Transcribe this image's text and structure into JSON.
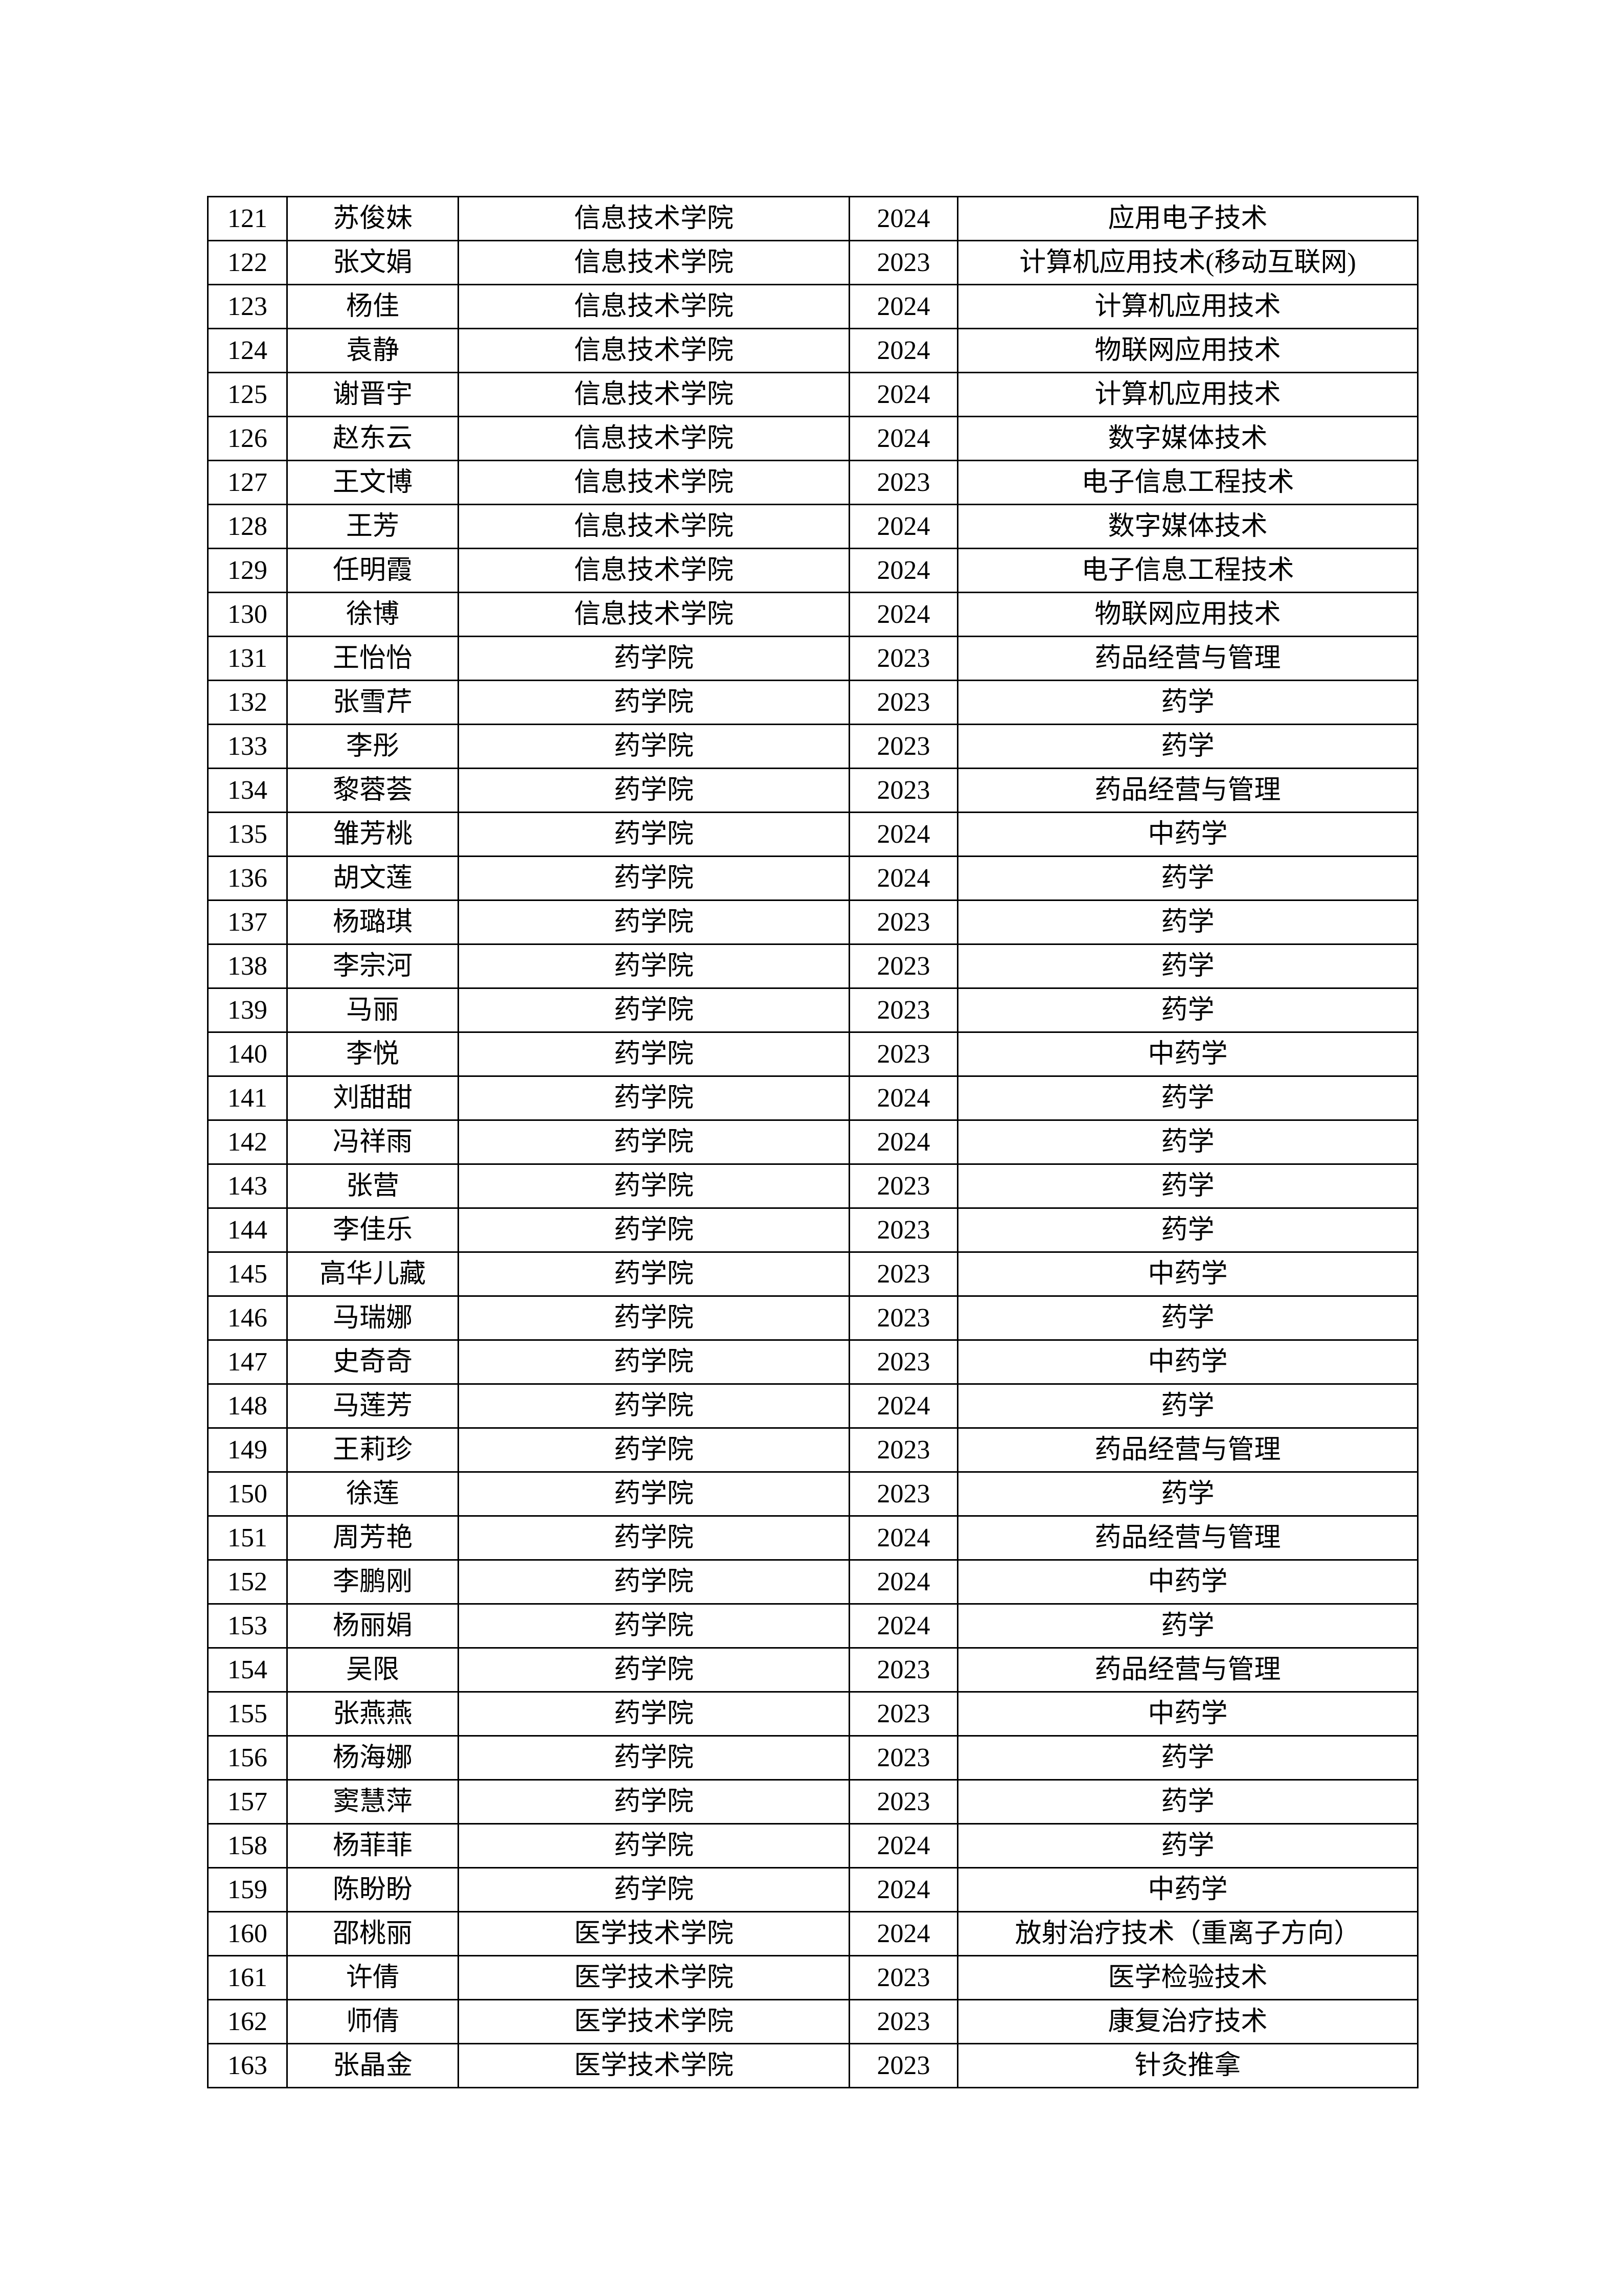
{
  "page": {
    "background_color": "#ffffff",
    "text_color": "#000000",
    "border_color": "#000000"
  },
  "table": {
    "rows": [
      [
        "121",
        "苏俊妹",
        "信息技术学院",
        "2024",
        "应用电子技术"
      ],
      [
        "122",
        "张文娟",
        "信息技术学院",
        "2023",
        "计算机应用技术(移动互联网)"
      ],
      [
        "123",
        "杨佳",
        "信息技术学院",
        "2024",
        "计算机应用技术"
      ],
      [
        "124",
        "袁静",
        "信息技术学院",
        "2024",
        "物联网应用技术"
      ],
      [
        "125",
        "谢晋宇",
        "信息技术学院",
        "2024",
        "计算机应用技术"
      ],
      [
        "126",
        "赵东云",
        "信息技术学院",
        "2024",
        "数字媒体技术"
      ],
      [
        "127",
        "王文博",
        "信息技术学院",
        "2023",
        "电子信息工程技术"
      ],
      [
        "128",
        "王芳",
        "信息技术学院",
        "2024",
        "数字媒体技术"
      ],
      [
        "129",
        "任明霞",
        "信息技术学院",
        "2024",
        "电子信息工程技术"
      ],
      [
        "130",
        "徐博",
        "信息技术学院",
        "2024",
        "物联网应用技术"
      ],
      [
        "131",
        "王怡怡",
        "药学院",
        "2023",
        "药品经营与管理"
      ],
      [
        "132",
        "张雪芹",
        "药学院",
        "2023",
        "药学"
      ],
      [
        "133",
        "李彤",
        "药学院",
        "2023",
        "药学"
      ],
      [
        "134",
        "黎蓉荟",
        "药学院",
        "2023",
        "药品经营与管理"
      ],
      [
        "135",
        "雏芳桃",
        "药学院",
        "2024",
        "中药学"
      ],
      [
        "136",
        "胡文莲",
        "药学院",
        "2024",
        "药学"
      ],
      [
        "137",
        "杨璐琪",
        "药学院",
        "2023",
        "药学"
      ],
      [
        "138",
        "李宗河",
        "药学院",
        "2023",
        "药学"
      ],
      [
        "139",
        "马丽",
        "药学院",
        "2023",
        "药学"
      ],
      [
        "140",
        "李悦",
        "药学院",
        "2023",
        "中药学"
      ],
      [
        "141",
        "刘甜甜",
        "药学院",
        "2024",
        "药学"
      ],
      [
        "142",
        "冯祥雨",
        "药学院",
        "2024",
        "药学"
      ],
      [
        "143",
        "张营",
        "药学院",
        "2023",
        "药学"
      ],
      [
        "144",
        "李佳乐",
        "药学院",
        "2023",
        "药学"
      ],
      [
        "145",
        "高华儿藏",
        "药学院",
        "2023",
        "中药学"
      ],
      [
        "146",
        "马瑞娜",
        "药学院",
        "2023",
        "药学"
      ],
      [
        "147",
        "史奇奇",
        "药学院",
        "2023",
        "中药学"
      ],
      [
        "148",
        "马莲芳",
        "药学院",
        "2024",
        "药学"
      ],
      [
        "149",
        "王莉珍",
        "药学院",
        "2023",
        "药品经营与管理"
      ],
      [
        "150",
        "徐莲",
        "药学院",
        "2023",
        "药学"
      ],
      [
        "151",
        "周芳艳",
        "药学院",
        "2024",
        "药品经营与管理"
      ],
      [
        "152",
        "李鹏刚",
        "药学院",
        "2024",
        "中药学"
      ],
      [
        "153",
        "杨丽娟",
        "药学院",
        "2024",
        "药学"
      ],
      [
        "154",
        "吴限",
        "药学院",
        "2023",
        "药品经营与管理"
      ],
      [
        "155",
        "张燕燕",
        "药学院",
        "2023",
        "中药学"
      ],
      [
        "156",
        "杨海娜",
        "药学院",
        "2023",
        "药学"
      ],
      [
        "157",
        "窦慧萍",
        "药学院",
        "2023",
        "药学"
      ],
      [
        "158",
        "杨菲菲",
        "药学院",
        "2024",
        "药学"
      ],
      [
        "159",
        "陈盼盼",
        "药学院",
        "2024",
        "中药学"
      ],
      [
        "160",
        "邵桃丽",
        "医学技术学院",
        "2024",
        "放射治疗技术（重离子方向）"
      ],
      [
        "161",
        "许倩",
        "医学技术学院",
        "2023",
        "医学检验技术"
      ],
      [
        "162",
        "师倩",
        "医学技术学院",
        "2023",
        "康复治疗技术"
      ],
      [
        "163",
        "张晶金",
        "医学技术学院",
        "2023",
        "针灸推拿"
      ]
    ]
  }
}
